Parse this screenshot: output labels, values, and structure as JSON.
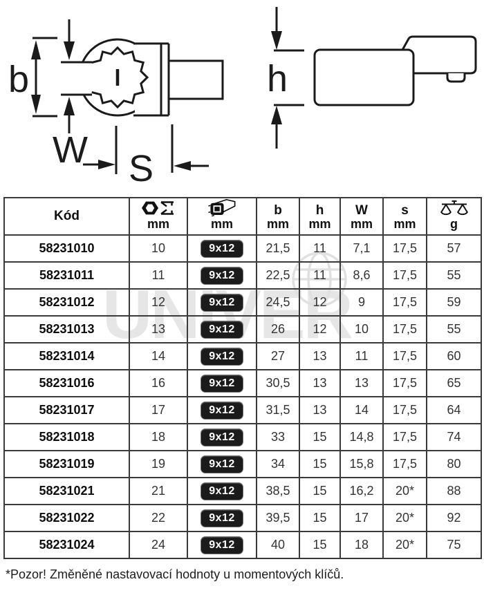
{
  "diagram": {
    "left": {
      "label_b": "b",
      "label_w": "W",
      "label_s": "S"
    },
    "right": {
      "label_h": "h"
    }
  },
  "table": {
    "columns": {
      "code": {
        "label": "Kód"
      },
      "size": {
        "icon": "hex-size-icon",
        "unit": "mm"
      },
      "drive": {
        "icon": "square-drive-icon",
        "unit": "mm"
      },
      "b": {
        "label": "b",
        "unit": "mm"
      },
      "h": {
        "label": "h",
        "unit": "mm"
      },
      "w": {
        "label": "W",
        "unit": "mm"
      },
      "s": {
        "label": "s",
        "unit": "mm"
      },
      "weight": {
        "icon": "scale-icon",
        "unit": "g"
      }
    },
    "rows": [
      {
        "code": "58231010",
        "size": "10",
        "drive": "9x12",
        "b": "21,5",
        "h": "11",
        "w": "7,1",
        "s": "17,5",
        "g": "57"
      },
      {
        "code": "58231011",
        "size": "11",
        "drive": "9x12",
        "b": "22,5",
        "h": "11",
        "w": "8,6",
        "s": "17,5",
        "g": "55"
      },
      {
        "code": "58231012",
        "size": "12",
        "drive": "9x12",
        "b": "24,5",
        "h": "12",
        "w": "9",
        "s": "17,5",
        "g": "59"
      },
      {
        "code": "58231013",
        "size": "13",
        "drive": "9x12",
        "b": "26",
        "h": "12",
        "w": "10",
        "s": "17,5",
        "g": "55"
      },
      {
        "code": "58231014",
        "size": "14",
        "drive": "9x12",
        "b": "27",
        "h": "13",
        "w": "11",
        "s": "17,5",
        "g": "60"
      },
      {
        "code": "58231016",
        "size": "16",
        "drive": "9x12",
        "b": "30,5",
        "h": "13",
        "w": "13",
        "s": "17,5",
        "g": "65"
      },
      {
        "code": "58231017",
        "size": "17",
        "drive": "9x12",
        "b": "31,5",
        "h": "13",
        "w": "14",
        "s": "17,5",
        "g": "64"
      },
      {
        "code": "58231018",
        "size": "18",
        "drive": "9x12",
        "b": "33",
        "h": "15",
        "w": "14,8",
        "s": "17,5",
        "g": "74"
      },
      {
        "code": "58231019",
        "size": "19",
        "drive": "9x12",
        "b": "34",
        "h": "15",
        "w": "15,8",
        "s": "17,5",
        "g": "80"
      },
      {
        "code": "58231021",
        "size": "21",
        "drive": "9x12",
        "b": "38,5",
        "h": "15",
        "w": "16,2",
        "s": "20*",
        "g": "88"
      },
      {
        "code": "58231022",
        "size": "22",
        "drive": "9x12",
        "b": "39,5",
        "h": "15",
        "w": "17",
        "s": "20*",
        "g": "92"
      },
      {
        "code": "58231024",
        "size": "24",
        "drive": "9x12",
        "b": "40",
        "h": "15",
        "w": "18",
        "s": "20*",
        "g": "75"
      }
    ]
  },
  "footnote": "*Pozor! Změněné nastavovací hodnoty u momentových klíčů.",
  "watermark": {
    "text": "UNIVER"
  },
  "colors": {
    "badge_bg": "#1b1b1b",
    "badge_text": "#ffffff",
    "border": "#3a3a3a",
    "line": "#1a1a1a",
    "watermark": "#e6e6e6"
  }
}
